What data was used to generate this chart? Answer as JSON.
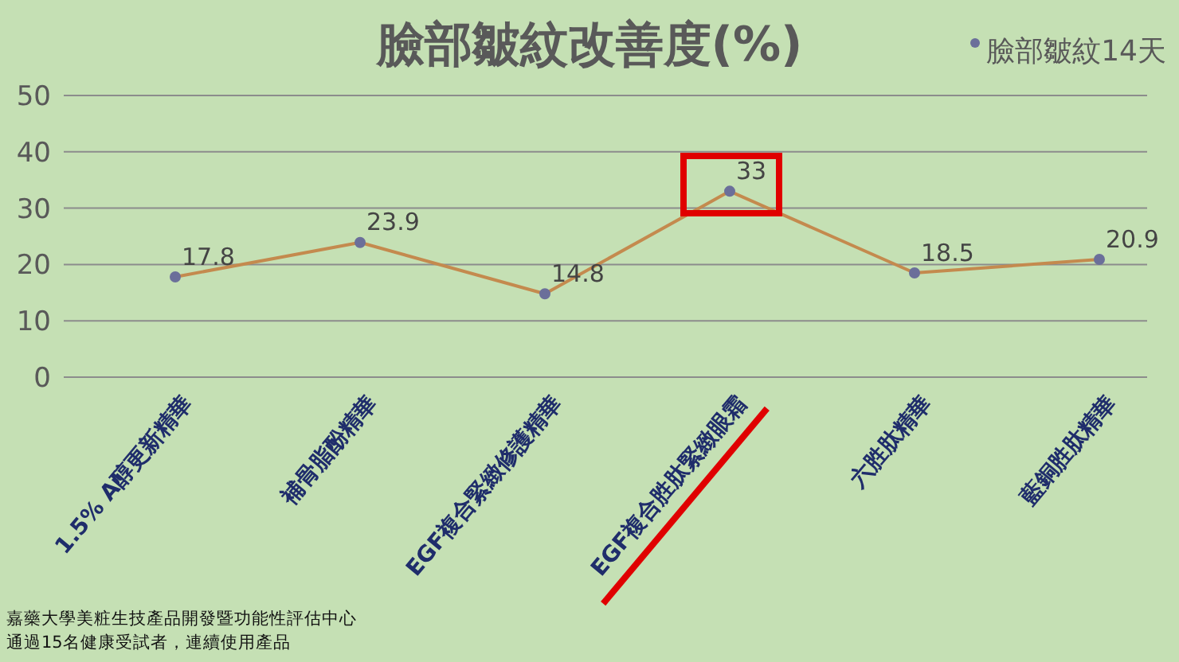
{
  "chart_data": {
    "type": "line",
    "title": "臉部皺紋改善度(%)",
    "categories": [
      "1.5% A醇更新精華",
      "補骨脂酚精華",
      "EGF複合緊緻修護精華",
      "EGF複合胜肽緊緻眼霜",
      "六胜肽精華",
      "藍銅胜肽精華"
    ],
    "series": [
      {
        "name": "臉部皺紋14天",
        "color": "#c48a4e",
        "values": [
          17.8,
          23.9,
          14.8,
          33,
          18.5,
          20.9
        ]
      }
    ],
    "ylim": [
      0,
      50
    ],
    "yticks": [
      0,
      10,
      20,
      30,
      40,
      50
    ],
    "grid": "y",
    "legend": "top right",
    "marker": "circle",
    "data_labels": true,
    "annotations": [
      "嘉藥大學美粧生技產品開發暨功能性評估中心",
      "通過15名健康受試者，連續使用產品"
    ]
  }
}
